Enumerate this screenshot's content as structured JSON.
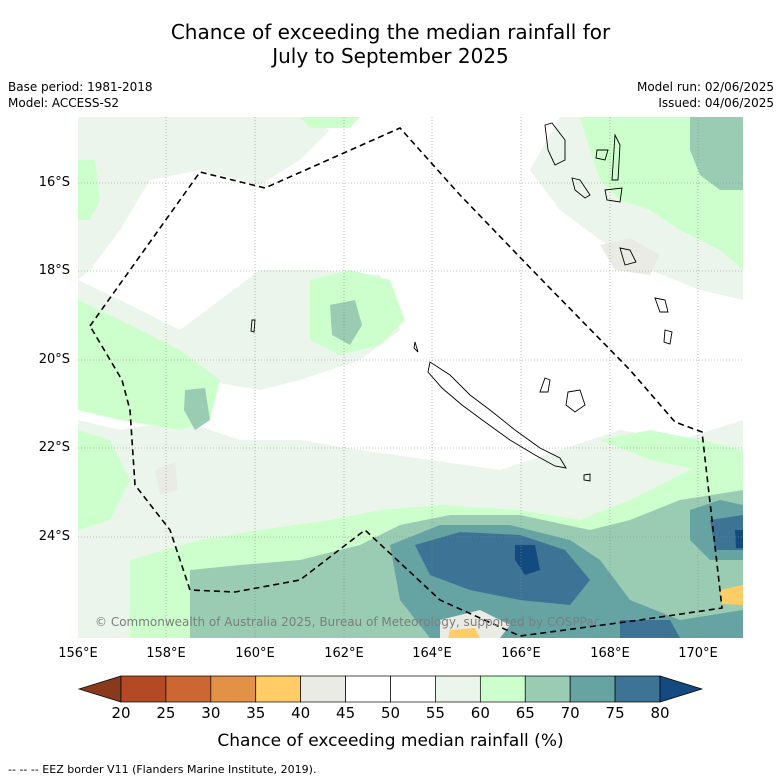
{
  "title_line1": "Chance of exceeding the median rainfall for",
  "title_line2": "July to September 2025",
  "base_period": "Base period: 1981-2018",
  "model": "Model: ACCESS-S2",
  "model_run": "Model run: 02/06/2025",
  "issued": "Issued: 04/06/2025",
  "copyright": "© Commonwealth of Australia 2025, Bureau of Meteorology, supported by COSPPac",
  "lat_labels": [
    "16°S",
    "18°S",
    "20°S",
    "22°S",
    "24°S"
  ],
  "lon_labels": [
    "156°E",
    "158°E",
    "160°E",
    "162°E",
    "164°E",
    "166°E",
    "168°E",
    "170°E"
  ],
  "colorbar": {
    "ticks": [
      "20",
      "25",
      "30",
      "35",
      "40",
      "45",
      "50",
      "55",
      "60",
      "65",
      "70",
      "75",
      "80"
    ],
    "colors": [
      "#b44a25",
      "#cc6633",
      "#e29147",
      "#ffcc66",
      "#ebebe6",
      "#ffffff",
      "#ffffff",
      "#ebf5eb",
      "#ccffcc",
      "#99ccb3",
      "#66a3a3",
      "#3d7394"
    ],
    "low_extend": "#8a3a1c",
    "high_extend": "#134a80",
    "title": "Chance of exceeding median rainfall (%)"
  },
  "footer": "--  --  -- EEZ border V11 (Flanders Marine Institute, 2019)."
}
